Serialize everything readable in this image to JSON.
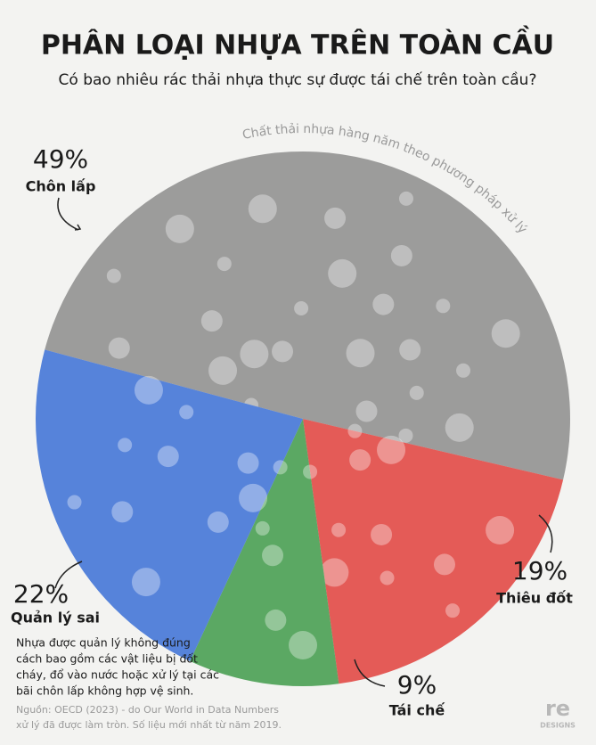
{
  "chart_data": {
    "type": "pie",
    "title": "PHÂN LOẠI NHỰA TRÊN TOÀN CẦU",
    "subtitle": "Có bao nhiêu rác thải nhựa thực sự được tái chế trên toàn cầu?",
    "arc_label": "Chất thải nhựa hàng năm theo phương pháp xử lý",
    "categories": [
      "Chôn lấp",
      "Thiêu đốt",
      "Tái chế",
      "Quản lý sai"
    ],
    "values": [
      49,
      19,
      9,
      22
    ],
    "value_labels": [
      "49%",
      "19%",
      "9%",
      "22%"
    ],
    "colors": [
      "#8c8c8c",
      "#e0403c",
      "#3f9a4a",
      "#3a6fd6"
    ]
  },
  "note": [
    "Nhựa được quản lý không đúng",
    "cách bao gồm các vật liệu bị đốt",
    "cháy, đổ vào nước hoặc xử lý tại các",
    "bãi chôn lấp không hợp vệ sinh."
  ],
  "source": [
    "Nguồn: OECD (2023) - do Our World in Data Numbers",
    "xử lý đã được làm tròn. Số liệu mới nhất từ năm 2019."
  ],
  "logo": {
    "mark": "re",
    "sub": "DESIGNS"
  }
}
